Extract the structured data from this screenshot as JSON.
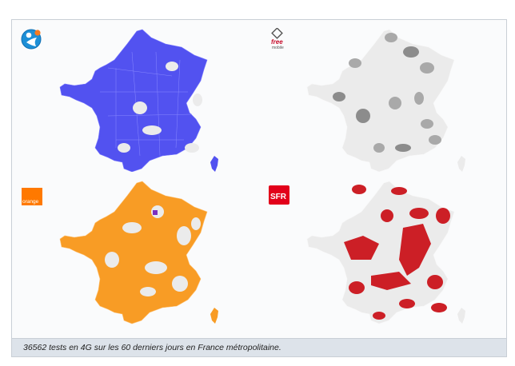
{
  "caption": "36562 tests en 4G sur les 60 derniers jours en France métropolitaine.",
  "legend_colors": {
    "no_coverage": "#ebebeb",
    "free_covered": "#a9a9a9",
    "free_covered_dark": "#8c8c8c"
  },
  "operators": [
    {
      "key": "bouygues",
      "logo_icon": "bouygues-telecom-logo-icon",
      "color": "#5252f0",
      "region_color": "#4a4aee"
    },
    {
      "key": "free",
      "logo_icon": "free-mobile-logo-icon",
      "logo_text": "free",
      "logo_sub": "mobile",
      "color": "#a9a9a9",
      "region_color": "#8f8f8f"
    },
    {
      "key": "orange",
      "logo_icon": "orange-logo-icon",
      "logo_text": "orange",
      "color": "#f89c25",
      "region_color": "#ff9a1f"
    },
    {
      "key": "sfr",
      "logo_icon": "sfr-logo-icon",
      "logo_text": "SFR",
      "color": "#cc1f26",
      "region_color": "#cc1f26"
    }
  ]
}
